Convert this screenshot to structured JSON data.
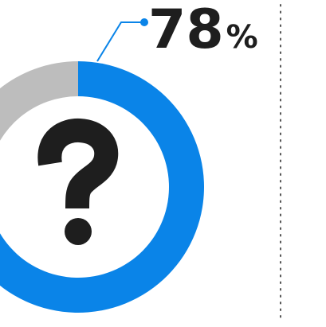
{
  "chart_data": {
    "type": "pie",
    "variant": "donut",
    "title": "",
    "slices": [
      {
        "label": "",
        "value": 78,
        "color": "#0A84E8"
      },
      {
        "label": "",
        "value": 22,
        "color": "#BDBDBD"
      }
    ],
    "callout": {
      "value_text": "78",
      "unit_text": "%",
      "text_color": "#1E1E1E",
      "line_color": "#0A84E8"
    },
    "center_icon": "question-mark-icon",
    "center_icon_color": "#1E1E1E",
    "divider_style": "dotted",
    "divider_color": "#555555"
  }
}
